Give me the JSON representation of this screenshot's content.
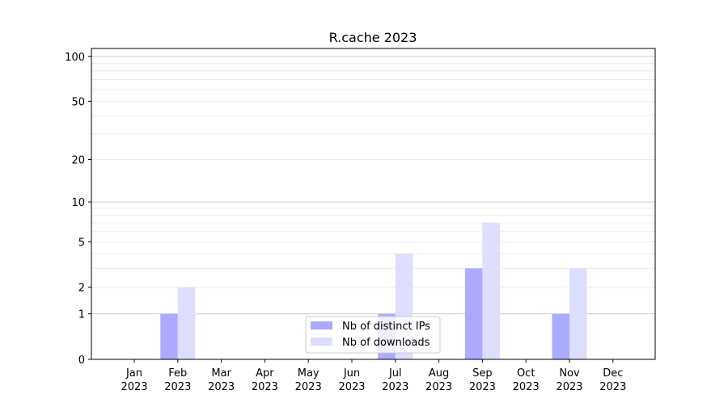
{
  "chart_data": {
    "type": "bar",
    "title": "R.cache 2023",
    "xlabel": "",
    "ylabel": "",
    "yscale": "log(1+y)",
    "ylim": [
      0,
      113
    ],
    "yticks": [
      0,
      1,
      2,
      5,
      10,
      20,
      50,
      100
    ],
    "grid": true,
    "legend_position": "lower center",
    "categories": [
      "Jan\n2023",
      "Feb\n2023",
      "Mar\n2023",
      "Apr\n2023",
      "May\n2023",
      "Jun\n2023",
      "Jul\n2023",
      "Aug\n2023",
      "Sep\n2023",
      "Oct\n2023",
      "Nov\n2023",
      "Dec\n2023"
    ],
    "series": [
      {
        "name": "Nb of distinct IPs",
        "color": "#aaaaff",
        "values": [
          0,
          1,
          0,
          0,
          0,
          0,
          1,
          0,
          3,
          0,
          1,
          0
        ]
      },
      {
        "name": "Nb of downloads",
        "color": "#ddddff",
        "values": [
          0,
          2,
          0,
          0,
          0,
          0,
          4,
          0,
          7,
          0,
          3,
          0
        ]
      }
    ]
  }
}
